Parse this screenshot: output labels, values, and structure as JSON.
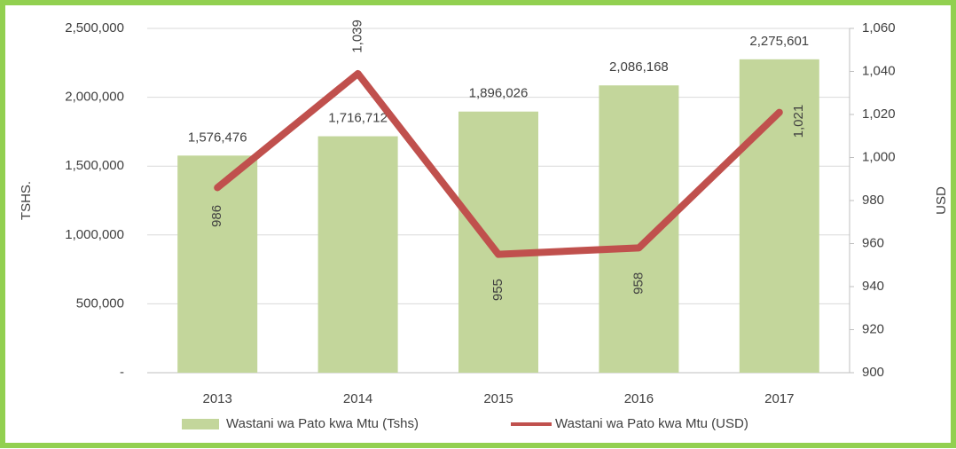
{
  "chart_data": {
    "type": "bar_line",
    "categories": [
      "2013",
      "2014",
      "2015",
      "2016",
      "2017"
    ],
    "ylabel": "TSHS.",
    "y2label": "USD",
    "series": [
      {
        "name": "Wastani wa Pato kwa Mtu (Tshs)",
        "type": "bar",
        "color": "#c3d69b",
        "values": [
          1576476,
          1716712,
          1896026,
          2086168,
          2275601
        ],
        "value_labels": [
          "1,576,476",
          "1,716,712",
          "1,896,026",
          "2,086,168",
          "2,275,601"
        ]
      },
      {
        "name": "Wastani wa Pato kwa Mtu (USD)",
        "type": "line",
        "axis": "y2",
        "color": "#c0504d",
        "values": [
          986,
          1039,
          955,
          958,
          1021
        ],
        "value_labels": [
          "986",
          "1,039",
          "955",
          "958",
          "1,021"
        ]
      }
    ],
    "ylim": [
      0,
      2500000
    ],
    "yticks": [
      {
        "value": 0,
        "label": "-"
      },
      {
        "value": 500000,
        "label": "500,000"
      },
      {
        "value": 1000000,
        "label": "1,000,000"
      },
      {
        "value": 1500000,
        "label": "1,500,000"
      },
      {
        "value": 2000000,
        "label": "2,000,000"
      },
      {
        "value": 2500000,
        "label": "2,500,000"
      }
    ],
    "y2lim": [
      900,
      1060
    ],
    "y2ticks": [
      900,
      920,
      940,
      960,
      980,
      {
        "value": 1000,
        "label": "1,000"
      },
      {
        "value": 1020,
        "label": "1,020"
      },
      {
        "value": 1040,
        "label": "1,040"
      },
      {
        "value": 1060,
        "label": "1,060"
      }
    ],
    "grid": true,
    "legend": "bottom"
  }
}
